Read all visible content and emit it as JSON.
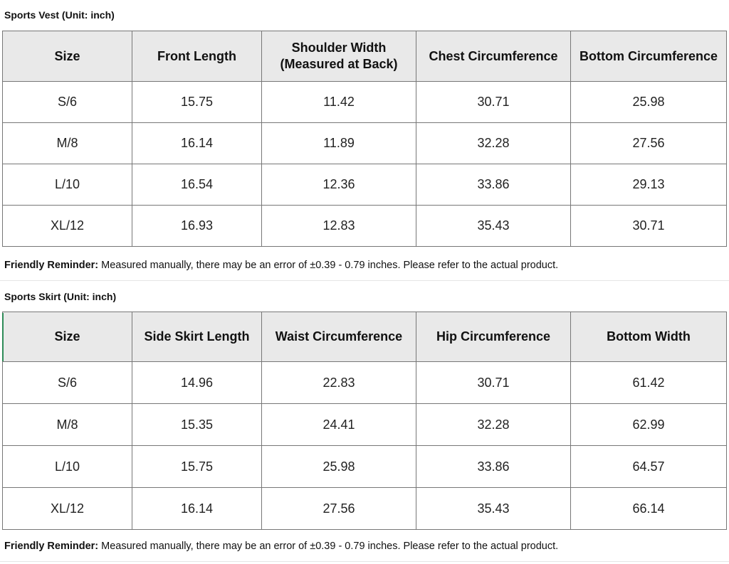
{
  "vest": {
    "title": "Sports Vest (Unit: inch)",
    "headers": [
      "Size",
      "Front Length",
      "Shoulder Width\n(Measured at Back)",
      "Chest Circumference",
      "Bottom Circumference"
    ],
    "rows": [
      [
        "S/6",
        "15.75",
        "11.42",
        "30.71",
        "25.98"
      ],
      [
        "M/8",
        "16.14",
        "11.89",
        "32.28",
        "27.56"
      ],
      [
        "L/10",
        "16.54",
        "12.36",
        "33.86",
        "29.13"
      ],
      [
        "XL/12",
        "16.93",
        "12.83",
        "35.43",
        "30.71"
      ]
    ],
    "reminder_label": "Friendly Reminder:",
    "reminder_text": "Measured manually, there may be an error of ±0.39 - 0.79 inches. Please refer to the actual product."
  },
  "skirt": {
    "title": "Sports Skirt (Unit: inch)",
    "headers": [
      "Size",
      "Side Skirt Length",
      "Waist Circumference",
      "Hip Circumference",
      "Bottom Width"
    ],
    "rows": [
      [
        "S/6",
        "14.96",
        "22.83",
        "30.71",
        "61.42"
      ],
      [
        "M/8",
        "15.35",
        "24.41",
        "32.28",
        "62.99"
      ],
      [
        "L/10",
        "15.75",
        "25.98",
        "33.86",
        "64.57"
      ],
      [
        "XL/12",
        "16.14",
        "27.56",
        "35.43",
        "66.14"
      ]
    ],
    "reminder_label": "Friendly Reminder:",
    "reminder_text": "Measured manually, there may be an error of ±0.39 - 0.79 inches. Please refer to the actual product."
  }
}
